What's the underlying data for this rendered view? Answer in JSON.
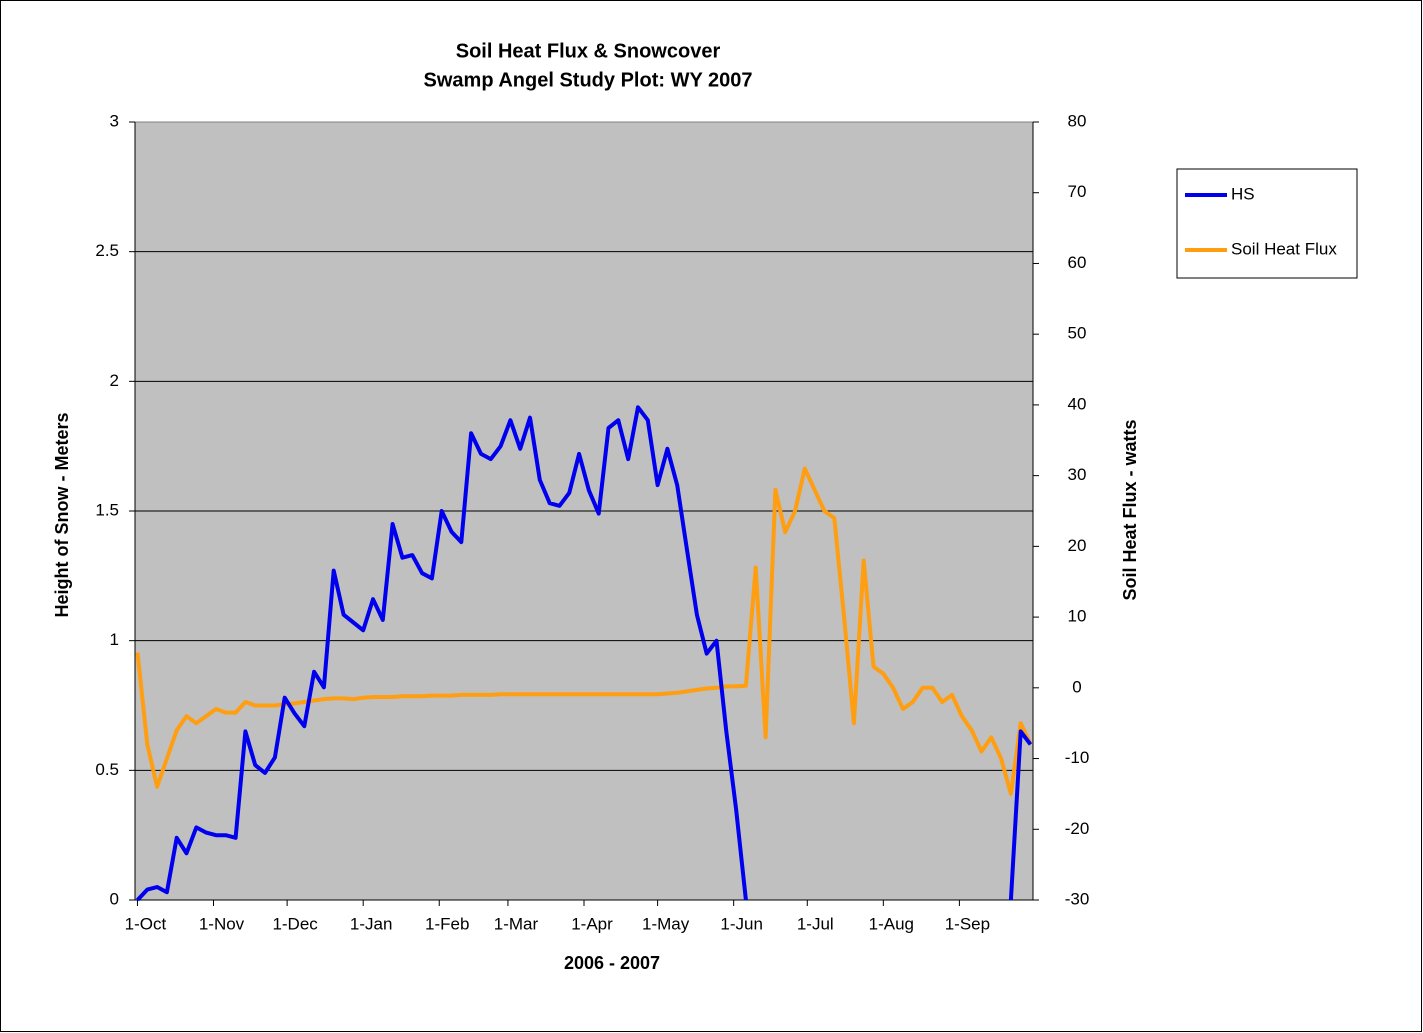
{
  "chart_data": {
    "type": "line",
    "title": "Soil Heat Flux & Snowcover",
    "subtitle": "Swamp Angel Study Plot: WY 2007",
    "x_label": "2006 - 2007",
    "y_label": "Height of Snow - Meters",
    "y2_label": "Soil Heat Flux - watts",
    "x": [
      0,
      4,
      8,
      12,
      16,
      20,
      24,
      28,
      32,
      36,
      40,
      44,
      48,
      52,
      56,
      60,
      64,
      68,
      72,
      76,
      80,
      84,
      88,
      92,
      96,
      100,
      104,
      108,
      112,
      116,
      120,
      124,
      128,
      132,
      136,
      140,
      144,
      148,
      152,
      156,
      160,
      164,
      168,
      172,
      176,
      180,
      184,
      188,
      192,
      196,
      200,
      204,
      208,
      212,
      216,
      220,
      224,
      228,
      232,
      236,
      240,
      244,
      248,
      252,
      256,
      260,
      264,
      268,
      272,
      276,
      280,
      284,
      288,
      292,
      296,
      300,
      304,
      308,
      312,
      316,
      320,
      324,
      328,
      332,
      336,
      340,
      344,
      348,
      352,
      356,
      360,
      364
    ],
    "xlim": [
      -1,
      365
    ],
    "xticks": [
      {
        "value": 0,
        "label": "1-Oct"
      },
      {
        "value": 31,
        "label": "1-Nov"
      },
      {
        "value": 61,
        "label": "1-Dec"
      },
      {
        "value": 92,
        "label": "1-Jan"
      },
      {
        "value": 123,
        "label": "1-Feb"
      },
      {
        "value": 151,
        "label": "1-Mar"
      },
      {
        "value": 182,
        "label": "1-Apr"
      },
      {
        "value": 212,
        "label": "1-May"
      },
      {
        "value": 243,
        "label": "1-Jun"
      },
      {
        "value": 273,
        "label": "1-Jul"
      },
      {
        "value": 304,
        "label": "1-Aug"
      },
      {
        "value": 335,
        "label": "1-Sep"
      }
    ],
    "ylim": [
      0,
      3
    ],
    "yticks": [
      0,
      0.5,
      1,
      1.5,
      2,
      2.5,
      3
    ],
    "y2lim": [
      -30,
      80
    ],
    "y2ticks": [
      -30,
      -20,
      -10,
      0,
      10,
      20,
      30,
      40,
      50,
      60,
      70,
      80
    ],
    "grid": true,
    "legend": "right",
    "series": [
      {
        "name": "HS",
        "color": "#0000ee",
        "values": [
          0,
          0.04,
          0.05,
          0.03,
          0.24,
          0.18,
          0.28,
          0.26,
          0.25,
          0.25,
          0.24,
          0.65,
          0.52,
          0.49,
          0.55,
          0.78,
          0.72,
          0.67,
          0.88,
          0.82,
          1.27,
          1.1,
          1.07,
          1.04,
          1.16,
          1.08,
          1.45,
          1.32,
          1.33,
          1.26,
          1.24,
          1.5,
          1.42,
          1.38,
          1.8,
          1.72,
          1.7,
          1.75,
          1.85,
          1.74,
          1.86,
          1.62,
          1.53,
          1.52,
          1.57,
          1.72,
          1.58,
          1.49,
          1.82,
          1.85,
          1.7,
          1.9,
          1.85,
          1.6,
          1.74,
          1.6,
          1.35,
          1.1,
          0.95,
          1.0,
          0.65,
          0.35,
          0,
          null,
          null,
          null,
          null,
          null,
          null,
          null,
          null,
          null,
          null,
          null,
          null,
          null,
          null,
          null,
          null,
          null,
          null,
          null,
          null,
          null,
          null,
          null,
          null,
          null,
          null,
          0,
          0.65,
          0.6
        ]
      },
      {
        "name": "Soil Heat Flux",
        "color": "#ff9e10",
        "axis": "y2",
        "values": [
          5,
          -8,
          -14,
          -10,
          -6,
          -4,
          -5,
          -4,
          -3,
          -3.5,
          -3.5,
          -2,
          -2.5,
          -2.5,
          -2.5,
          -2.3,
          -2.2,
          -2,
          -1.8,
          -1.6,
          -1.5,
          -1.5,
          -1.6,
          -1.4,
          -1.3,
          -1.3,
          -1.3,
          -1.2,
          -1.2,
          -1.2,
          -1.1,
          -1.1,
          -1.1,
          -1,
          -1,
          -1,
          -1,
          -0.9,
          -0.9,
          -0.9,
          -0.9,
          -0.9,
          -0.9,
          -0.9,
          -0.9,
          -0.9,
          -0.9,
          -0.9,
          -0.9,
          -0.9,
          -0.9,
          -0.9,
          -0.9,
          -0.9,
          -0.8,
          -0.7,
          -0.5,
          -0.3,
          -0.1,
          0,
          0.2,
          0.2,
          0.3,
          17,
          -7,
          28,
          22,
          25,
          31,
          28,
          25,
          24,
          10,
          -5,
          18,
          3,
          2,
          0,
          -3,
          -2,
          0,
          0,
          -2,
          -1,
          -4,
          -6,
          -9,
          -7,
          -10,
          -15,
          -5,
          -8
        ]
      }
    ]
  }
}
